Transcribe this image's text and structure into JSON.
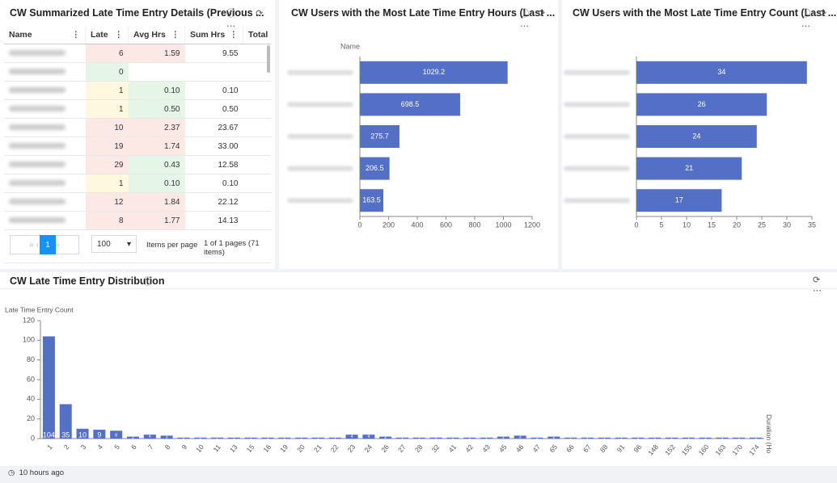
{
  "header": {
    "table_title": "CW Summarized Late Time Entry Details (Previous ...",
    "footer": "10 hours ago"
  },
  "table": {
    "columns": [
      "Name",
      "Late",
      "Avg Hrs",
      "Sum Hrs",
      "Total"
    ],
    "rows": [
      {
        "name": null,
        "late": 6,
        "avg": "1.59",
        "sum": "9.55",
        "late_color": "#fce8e4",
        "avg_color": "#fce8e4"
      },
      {
        "name": null,
        "late": 0,
        "avg": null,
        "sum": null,
        "late_color": "#e5f6e8",
        "avg_color": "#ffffff"
      },
      {
        "name": null,
        "late": 1,
        "avg": "0.10",
        "sum": "0.10",
        "late_color": "#fff8e1",
        "avg_color": "#e5f6e8"
      },
      {
        "name": null,
        "late": 1,
        "avg": "0.50",
        "sum": "0.50",
        "late_color": "#fff8e1",
        "avg_color": "#e5f6e8"
      },
      {
        "name": null,
        "late": 10,
        "avg": "2.37",
        "sum": "23.67",
        "late_color": "#fce8e4",
        "avg_color": "#fce8e4"
      },
      {
        "name": null,
        "late": 19,
        "avg": "1.74",
        "sum": "33.00",
        "late_color": "#fce8e4",
        "avg_color": "#fce8e4"
      },
      {
        "name": null,
        "late": 29,
        "avg": "0.43",
        "sum": "12.58",
        "late_color": "#fce8e4",
        "avg_color": "#e5f6e8"
      },
      {
        "name": null,
        "late": 1,
        "avg": "0.10",
        "sum": "0.10",
        "late_color": "#fff8e1",
        "avg_color": "#e5f6e8"
      },
      {
        "name": null,
        "late": 12,
        "avg": "1.84",
        "sum": "22.12",
        "late_color": "#fce8e4",
        "avg_color": "#fce8e4"
      },
      {
        "name": null,
        "late": 8,
        "avg": "1.77",
        "sum": "14.13",
        "late_color": "#fce8e4",
        "avg_color": "#fce8e4"
      }
    ],
    "pagination": {
      "page": "1",
      "page_size": "100",
      "per_page_label": "Items per page",
      "summary": "1 of 1 pages (71 items)"
    }
  },
  "chart_data": [
    {
      "type": "hbar",
      "title": "CW Users with the Most Late Time Entry Hours (Last ...",
      "y_label": "Name",
      "categories": [
        null,
        null,
        null,
        null,
        null
      ],
      "values": [
        1029.2,
        698.5,
        275.7,
        206.5,
        163.5
      ],
      "color": "#5470c6",
      "xlim": [
        0,
        1200
      ],
      "xticks": [
        0,
        200,
        400,
        600,
        800,
        1000,
        1200
      ]
    },
    {
      "type": "hbar",
      "title": "CW Users with the Most Late Time Entry Count (Last ...",
      "categories": [
        null,
        null,
        null,
        null,
        null
      ],
      "values": [
        34,
        26,
        24,
        21,
        17
      ],
      "color": "#5470c6",
      "xlim": [
        0,
        35
      ],
      "xticks": [
        0,
        5,
        10,
        15,
        20,
        25,
        30,
        35
      ]
    },
    {
      "type": "bar",
      "title": "CW Late Time Entry Distribution",
      "y_label": "Late Time Entry Count",
      "x_label": "Duration (Ho",
      "categories": [
        "1",
        "2",
        "3",
        "4",
        "5",
        "6",
        "7",
        "8",
        "9",
        "10",
        "11",
        "13",
        "15",
        "16",
        "19",
        "20",
        "21",
        "22",
        "23",
        "24",
        "26",
        "27",
        "28",
        "32",
        "41",
        "42",
        "43",
        "45",
        "46",
        "47",
        "65",
        "66",
        "67",
        "88",
        "91",
        "96",
        "148",
        "152",
        "155",
        "160",
        "163",
        "170",
        "174"
      ],
      "values": [
        104,
        35,
        10,
        9,
        8,
        2,
        4,
        3,
        1,
        1,
        1,
        1,
        1,
        1,
        1,
        1,
        1,
        1,
        4,
        4,
        2,
        1,
        1,
        1,
        1,
        1,
        1,
        2,
        3,
        1,
        2,
        1,
        1,
        1,
        1,
        1,
        1,
        1,
        1,
        1,
        1,
        1,
        1
      ],
      "color": "#5470c6",
      "ylim": [
        0,
        120
      ],
      "yticks": [
        0,
        20,
        40,
        60,
        80,
        100,
        120
      ]
    }
  ]
}
